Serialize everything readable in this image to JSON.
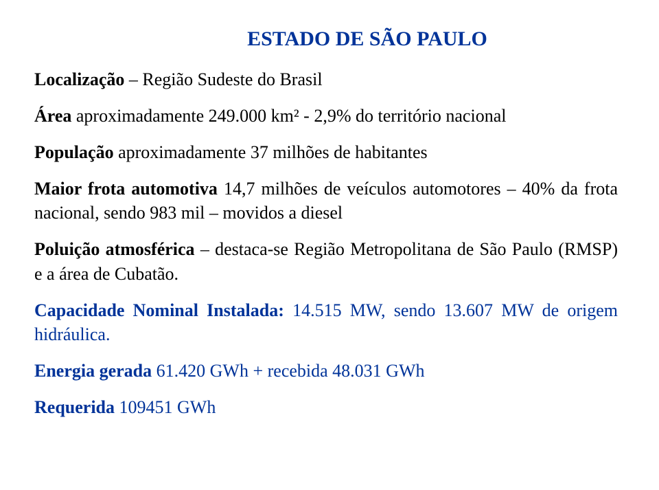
{
  "title": "ESTADO DE SÃO PAULO",
  "p1_label": "Localização",
  "p1_value": " – Região Sudeste do Brasil",
  "p2_label": "Área",
  "p2_value": " aproximadamente 249.000 km² - 2,9% do território nacional",
  "p3_label": "População",
  "p3_value": " aproximadamente 37 milhões de habitantes",
  "p4_label": "Maior frota automotiva",
  "p4_value": " 14,7 milhões de veículos automotores – 40% da frota nacional, sendo 983 mil – movidos a diesel",
  "p5_label": "Poluição atmosférica",
  "p5_value": " – destaca-se Região Metropolitana de São Paulo (RMSP) e a área de Cubatão.",
  "p6_label": "Capacidade Nominal Instalada:",
  "p6_value": " 14.515 MW, sendo 13.607 MW de origem hidráulica.",
  "p7_label": "Energia gerada",
  "p7_value": " 61.420 GWh + recebida 48.031 GWh",
  "p8_label": "Requerida",
  "p8_value": " 109451 GWh"
}
